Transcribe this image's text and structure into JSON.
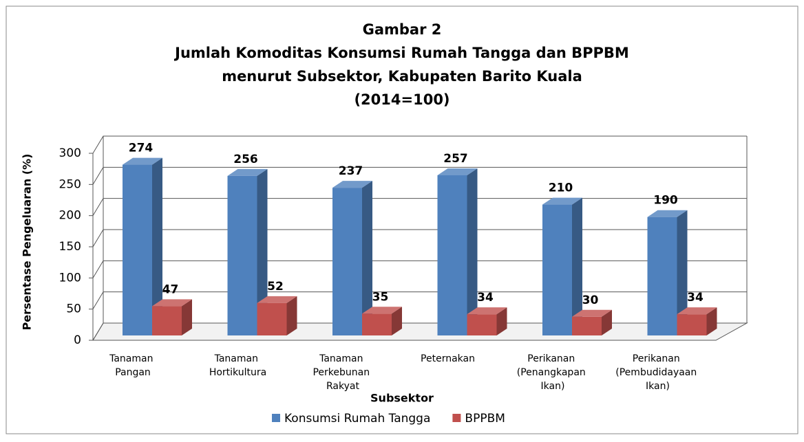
{
  "chart_data": {
    "type": "bar3d",
    "title": "Gambar 2",
    "subtitle": [
      "Jumlah Komoditas Konsumsi Rumah Tangga dan BPPBM",
      "menurut Subsektor, Kabupaten Barito Kuala",
      "(2014=100)"
    ],
    "x_label": "Subsektor",
    "y_label": "Persentase Pengeluaran (%)",
    "categories": [
      "Tanaman Pangan",
      "Tanaman Hortikultura",
      "Tanaman Perkebunan Rakyat",
      "Peternakan",
      "Perikanan (Penangkapan Ikan)",
      "Perikanan (Pembudidayaan Ikan)"
    ],
    "series": [
      {
        "name": "Konsumsi Rumah Tangga",
        "color": "#4f81bd",
        "values": [
          274,
          256,
          237,
          257,
          210,
          190
        ]
      },
      {
        "name": "BPPBM",
        "color": "#c0504d",
        "values": [
          47,
          52,
          35,
          34,
          30,
          34
        ]
      }
    ],
    "ylim": [
      0,
      300
    ],
    "yticks": [
      0,
      50,
      100,
      150,
      200,
      250,
      300
    ],
    "grid": true,
    "legend": "bottom"
  }
}
